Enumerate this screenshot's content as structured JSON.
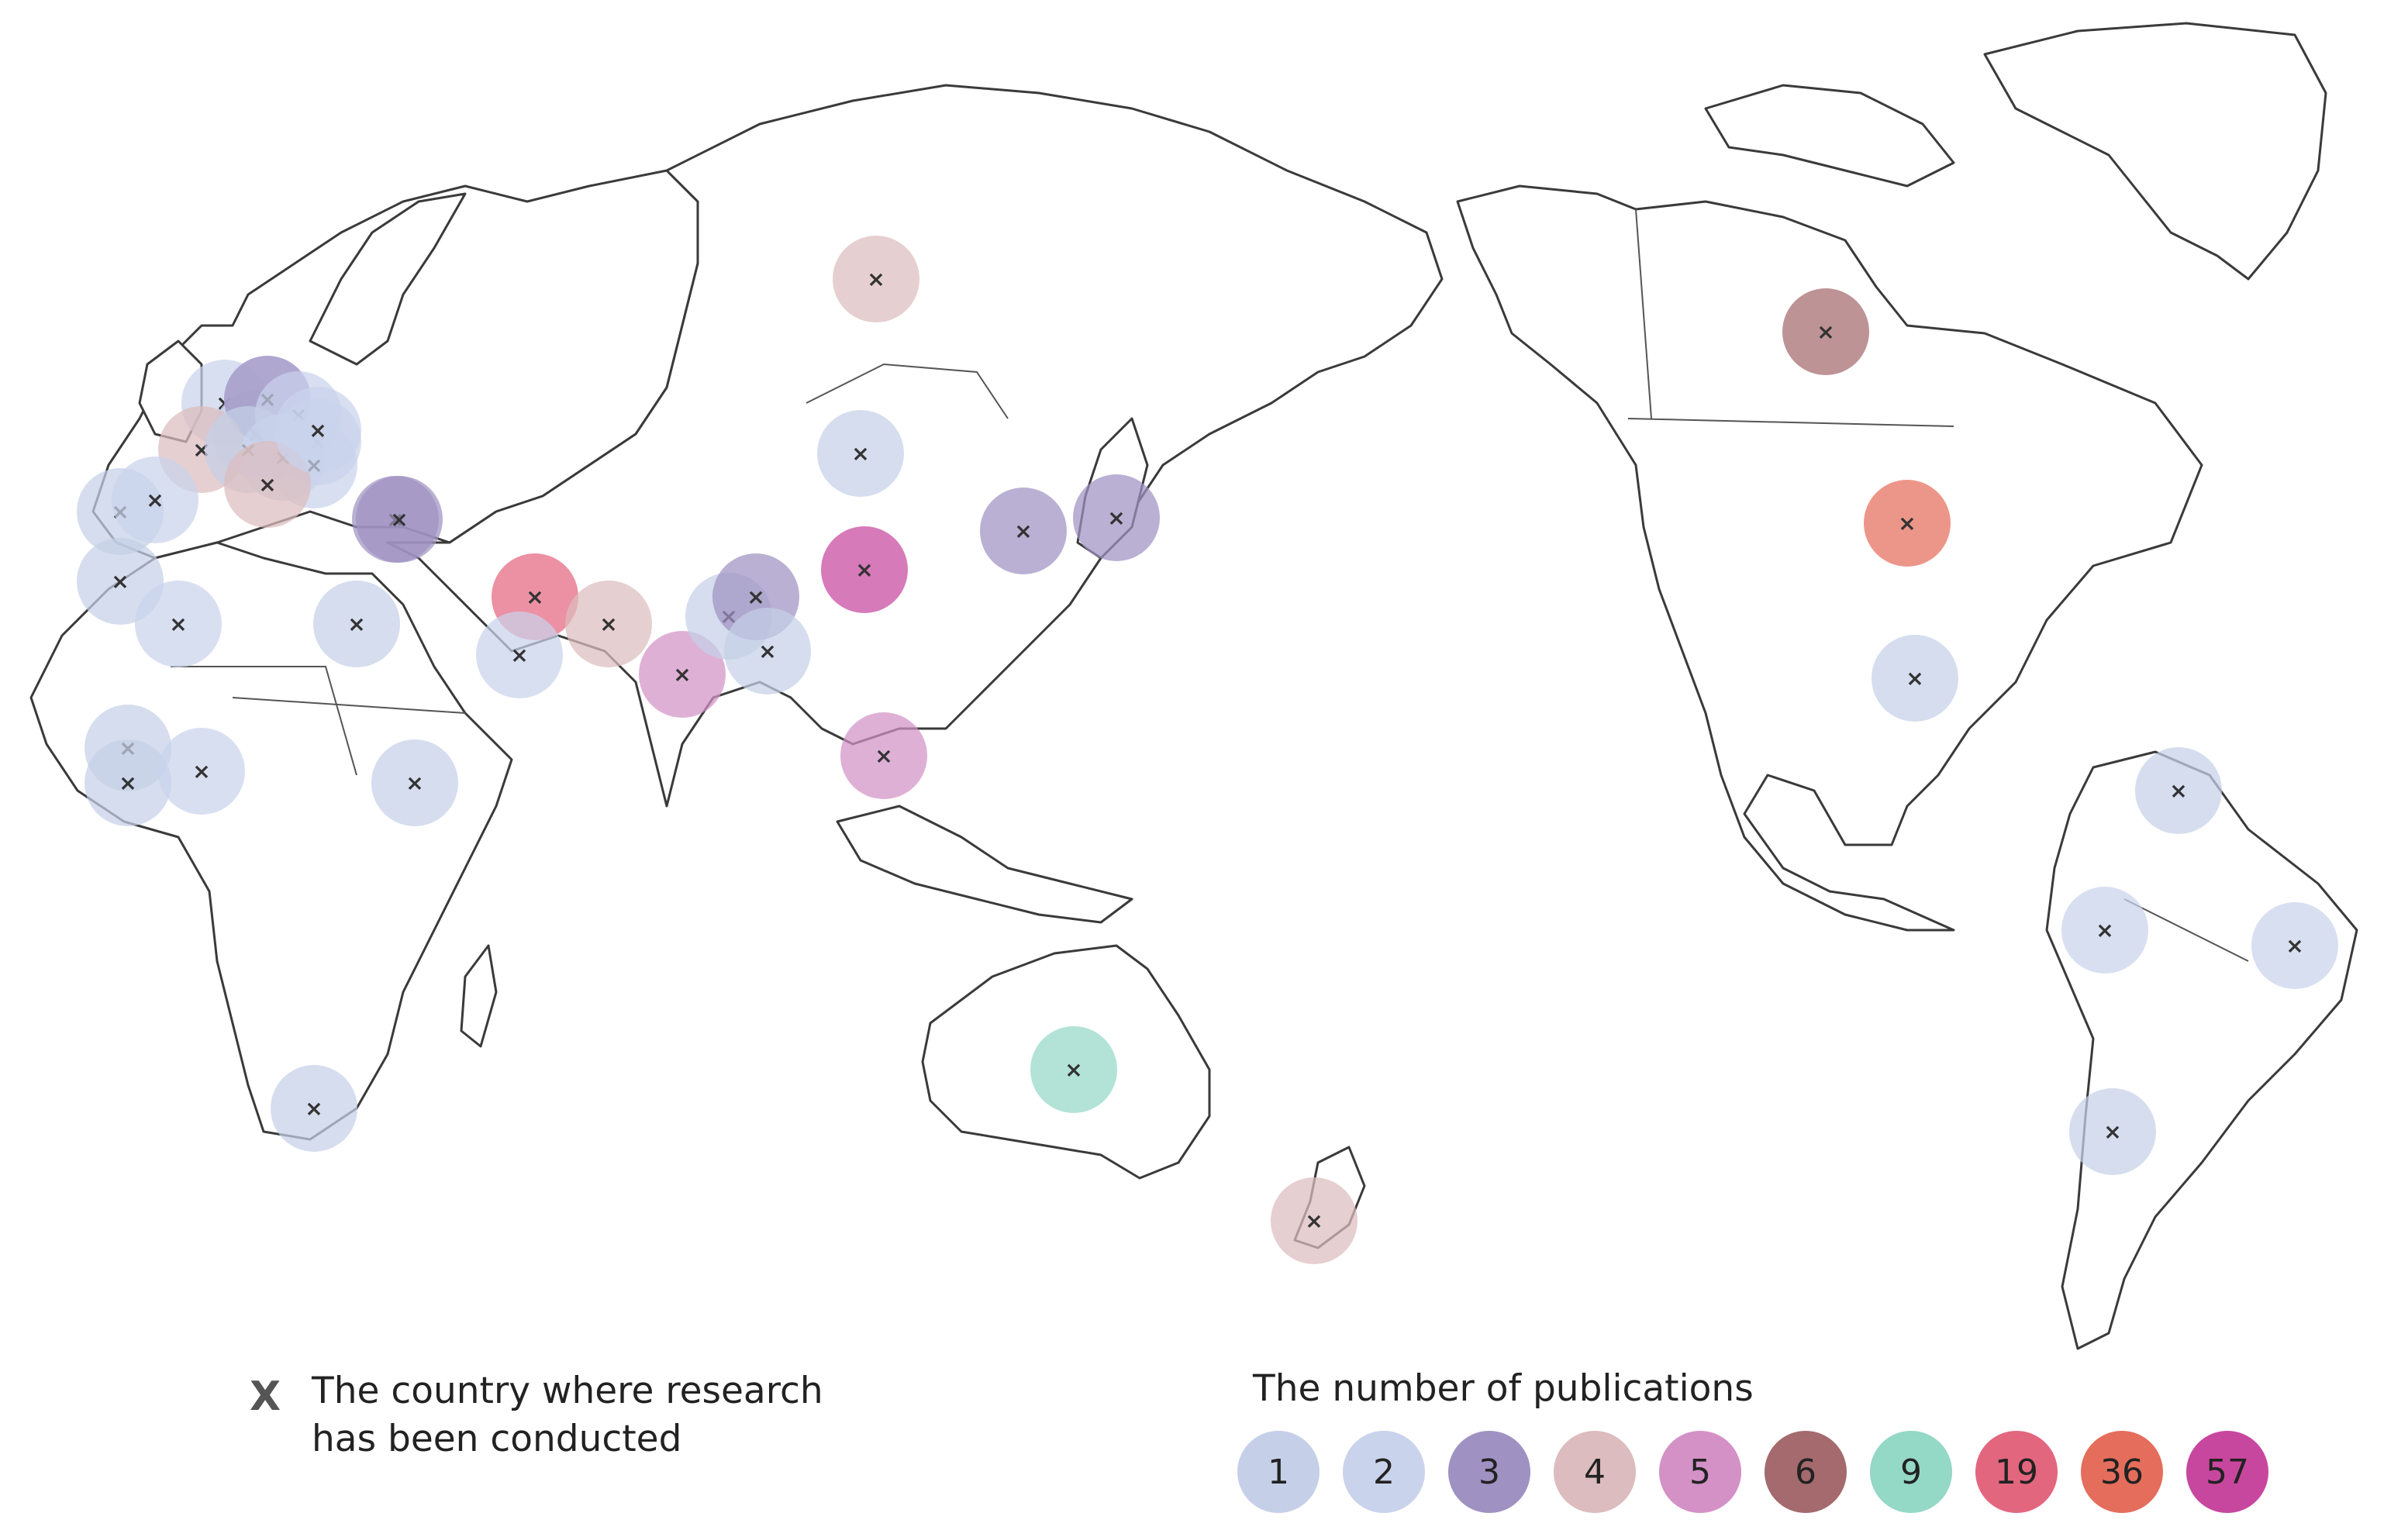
{
  "legend": {
    "marker_symbol": "X",
    "marker_description": "The country where research\nhas been conducted",
    "title": "The number of publications",
    "bins": [
      {
        "label": "1",
        "color": "#c5d0e8"
      },
      {
        "label": "2",
        "color": "#c9d3eb"
      },
      {
        "label": "3",
        "color": "#9f92c2"
      },
      {
        "label": "4",
        "color": "#dcbcbe"
      },
      {
        "label": "5",
        "color": "#d391c6"
      },
      {
        "label": "6",
        "color": "#a46a6e"
      },
      {
        "label": "9",
        "color": "#94d8c6"
      },
      {
        "label": "19",
        "color": "#e3667f"
      },
      {
        "label": "36",
        "color": "#e56d5c"
      },
      {
        "label": "57",
        "color": "#c8479e"
      }
    ]
  },
  "markers": [
    {
      "region": "United Kingdom",
      "bin": "2"
    },
    {
      "region": "Netherlands",
      "bin": "2"
    },
    {
      "region": "Belgium",
      "bin": "1"
    },
    {
      "region": "Germany",
      "bin": "3"
    },
    {
      "region": "Denmark",
      "bin": "2"
    },
    {
      "region": "Poland",
      "bin": "2"
    },
    {
      "region": "France",
      "bin": "4"
    },
    {
      "region": "Switzerland",
      "bin": "1"
    },
    {
      "region": "Austria",
      "bin": "2"
    },
    {
      "region": "Czechia",
      "bin": "2"
    },
    {
      "region": "Italy",
      "bin": "4"
    },
    {
      "region": "Hungary",
      "bin": "2"
    },
    {
      "region": "Portugal",
      "bin": "1"
    },
    {
      "region": "Spain",
      "bin": "2"
    },
    {
      "region": "Greece",
      "bin": "3"
    },
    {
      "region": "Turkey",
      "bin": "3"
    },
    {
      "region": "Morocco",
      "bin": "1"
    },
    {
      "region": "Algeria",
      "bin": "2"
    },
    {
      "region": "Egypt",
      "bin": "1"
    },
    {
      "region": "Senegal",
      "bin": "1"
    },
    {
      "region": "Ghana",
      "bin": "1"
    },
    {
      "region": "Nigeria",
      "bin": "2"
    },
    {
      "region": "Ethiopia",
      "bin": "1"
    },
    {
      "region": "South Africa",
      "bin": "1"
    },
    {
      "region": "Iran",
      "bin": "19"
    },
    {
      "region": "Saudi Arabia",
      "bin": "2"
    },
    {
      "region": "Pakistan",
      "bin": "4"
    },
    {
      "region": "India",
      "bin": "5"
    },
    {
      "region": "Nepal",
      "bin": "1"
    },
    {
      "region": "Bangladesh",
      "bin": "3"
    },
    {
      "region": "Myanmar",
      "bin": "1"
    },
    {
      "region": "Russia",
      "bin": "4"
    },
    {
      "region": "Mongolia",
      "bin": "1"
    },
    {
      "region": "China",
      "bin": "57"
    },
    {
      "region": "South Korea",
      "bin": "3"
    },
    {
      "region": "Japan",
      "bin": "3"
    },
    {
      "region": "Thailand",
      "bin": "5"
    },
    {
      "region": "Australia",
      "bin": "9"
    },
    {
      "region": "New Zealand",
      "bin": "4"
    },
    {
      "region": "Canada",
      "bin": "6"
    },
    {
      "region": "United States",
      "bin": "36"
    },
    {
      "region": "Mexico",
      "bin": "1"
    },
    {
      "region": "Colombia",
      "bin": "1"
    },
    {
      "region": "Peru",
      "bin": "2"
    },
    {
      "region": "Brazil",
      "bin": "2"
    },
    {
      "region": "Chile",
      "bin": "1"
    }
  ]
}
